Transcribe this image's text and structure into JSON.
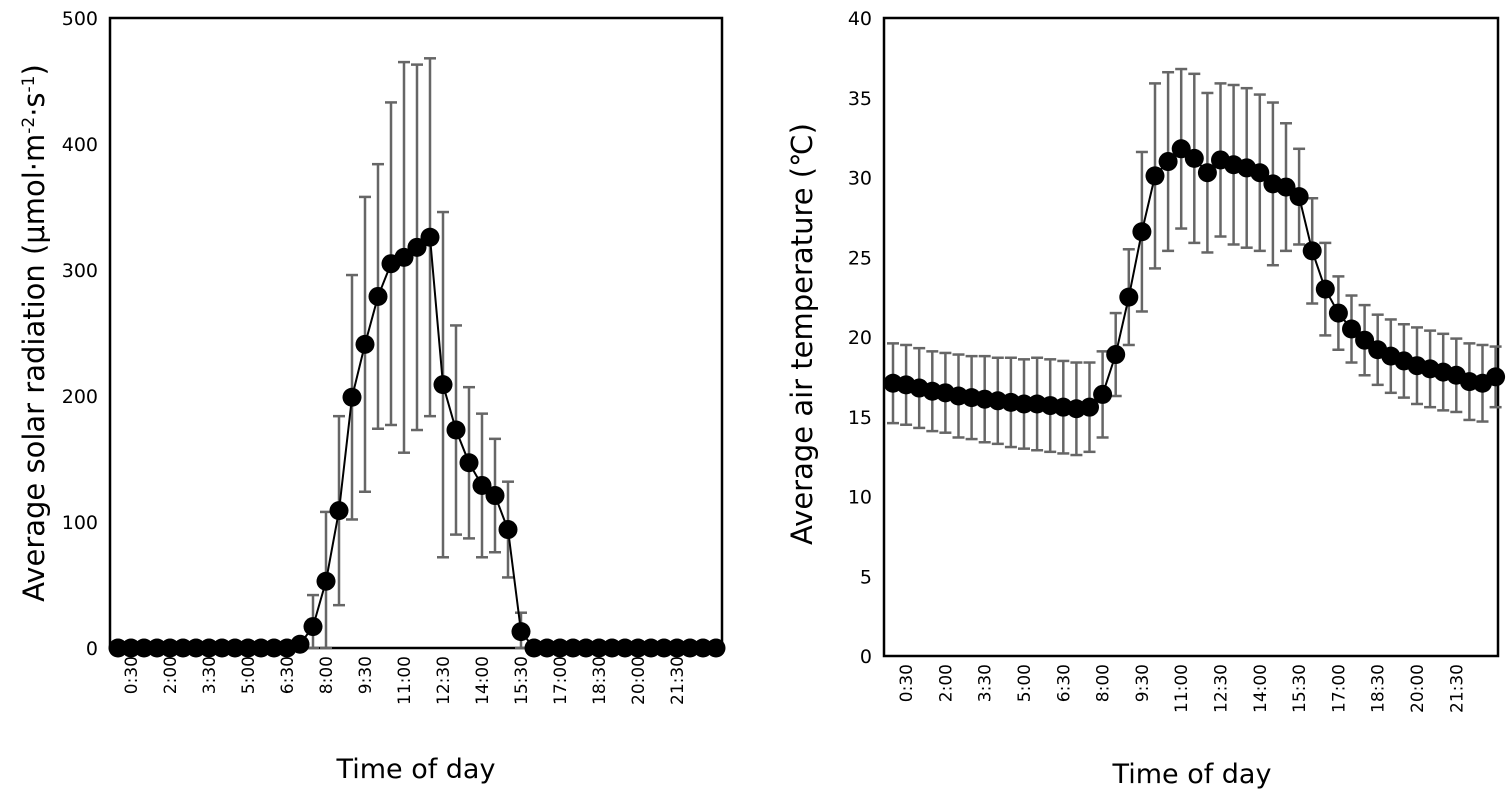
{
  "chart_data": [
    {
      "type": "line",
      "xlabel": "Time of day",
      "ylabel": "Average  solar radiation (μmol·m",
      "ylabel_sup1": "-2",
      "ylabel_mid": "·s",
      "ylabel_sup2": "-1",
      "ylabel_end": ")",
      "ylim": [
        0,
        500
      ],
      "yticks": [
        0,
        100,
        200,
        300,
        400,
        500
      ],
      "ytick_labels": [
        "0",
        "100",
        "200",
        "300",
        "400",
        "500"
      ],
      "grid": false,
      "legend": "none",
      "x": [
        "0:00",
        "0:30",
        "1:00",
        "1:30",
        "2:00",
        "2:30",
        "3:00",
        "3:30",
        "4:00",
        "4:30",
        "5:00",
        "5:30",
        "6:00",
        "6:30",
        "7:00",
        "7:30",
        "8:00",
        "8:30",
        "9:00",
        "9:30",
        "10:00",
        "10:30",
        "11:00",
        "11:30",
        "12:00",
        "12:30",
        "13:00",
        "13:30",
        "14:00",
        "14:30",
        "15:00",
        "15:30",
        "16:00",
        "16:30",
        "17:00",
        "17:30",
        "18:00",
        "18:30",
        "19:00",
        "19:30",
        "20:00",
        "20:30",
        "21:00",
        "21:30",
        "22:00",
        "22:30",
        "23:00"
      ],
      "x_tick_labels": [
        "0:30",
        "2:00",
        "3:30",
        "5:00",
        "6:30",
        "8:00",
        "9:30",
        "11:00",
        "12:30",
        "14:00",
        "15:30",
        "17:00",
        "18:30",
        "20:00",
        "21:30"
      ],
      "series": [
        {
          "values": [
            0,
            0,
            0,
            0,
            0,
            0,
            0,
            0,
            0,
            0,
            0,
            0,
            0,
            0,
            3,
            17,
            53,
            109,
            199,
            241,
            279,
            305,
            310,
            318,
            326,
            209,
            173,
            147,
            129,
            121,
            94,
            13,
            0,
            0,
            0,
            0,
            0,
            0,
            0,
            0,
            0,
            0,
            0,
            0,
            0,
            0,
            0
          ],
          "error": [
            0,
            0,
            0,
            0,
            0,
            0,
            0,
            0,
            0,
            0,
            0,
            0,
            0,
            0,
            0,
            25,
            55,
            75,
            97,
            117,
            105,
            128,
            155,
            145,
            142,
            137,
            83,
            60,
            57,
            45,
            38,
            15,
            0,
            0,
            0,
            0,
            0,
            0,
            0,
            0,
            0,
            0,
            0,
            0,
            0,
            0,
            0
          ]
        }
      ]
    },
    {
      "type": "line",
      "xlabel": "Time of day",
      "ylabel": "Average air temperature (℃)",
      "ylim": [
        0,
        40
      ],
      "yticks": [
        0,
        5,
        10,
        15,
        20,
        25,
        30,
        35,
        40
      ],
      "ytick_labels": [
        "0",
        "5",
        "10",
        "15",
        "20",
        "25",
        "30",
        "35",
        "40"
      ],
      "grid": false,
      "legend": "none",
      "x": [
        "0:00",
        "0:30",
        "1:00",
        "1:30",
        "2:00",
        "2:30",
        "3:00",
        "3:30",
        "4:00",
        "4:30",
        "5:00",
        "5:30",
        "6:00",
        "6:30",
        "7:00",
        "7:30",
        "8:00",
        "8:30",
        "9:00",
        "9:30",
        "10:00",
        "10:30",
        "11:00",
        "11:30",
        "12:00",
        "12:30",
        "13:00",
        "13:30",
        "14:00",
        "14:30",
        "15:00",
        "15:30",
        "16:00",
        "16:30",
        "17:00",
        "17:30",
        "18:00",
        "18:30",
        "19:00",
        "19:30",
        "20:00",
        "20:30",
        "21:00",
        "21:30",
        "22:00",
        "22:30",
        "23:00"
      ],
      "x_tick_labels": [
        "0:30",
        "2:00",
        "3:30",
        "5:00",
        "6:30",
        "8:00",
        "9:30",
        "11:00",
        "12:30",
        "14:00",
        "15:30",
        "17:00",
        "18:30",
        "20:00",
        "21:30"
      ],
      "series": [
        {
          "values": [
            17.1,
            17.0,
            16.8,
            16.6,
            16.5,
            16.3,
            16.2,
            16.1,
            16.0,
            15.9,
            15.8,
            15.8,
            15.7,
            15.6,
            15.5,
            15.6,
            16.4,
            18.9,
            22.5,
            26.6,
            30.1,
            31.0,
            31.8,
            31.2,
            30.3,
            31.1,
            30.8,
            30.6,
            30.3,
            29.6,
            29.4,
            28.8,
            25.4,
            23.0,
            21.5,
            20.5,
            19.8,
            19.2,
            18.8,
            18.5,
            18.2,
            18.0,
            17.8,
            17.6,
            17.2,
            17.1,
            17.5
          ],
          "error": [
            2.5,
            2.5,
            2.5,
            2.5,
            2.5,
            2.6,
            2.6,
            2.7,
            2.7,
            2.8,
            2.8,
            2.9,
            2.9,
            2.9,
            2.9,
            2.8,
            2.7,
            2.6,
            3.0,
            5.0,
            5.8,
            5.6,
            5.0,
            5.3,
            5.0,
            4.8,
            5.0,
            5.0,
            4.9,
            5.1,
            4.0,
            3.0,
            3.3,
            2.9,
            2.3,
            2.1,
            2.2,
            2.2,
            2.3,
            2.3,
            2.4,
            2.4,
            2.4,
            2.3,
            2.4,
            2.4,
            1.9
          ]
        }
      ]
    }
  ]
}
